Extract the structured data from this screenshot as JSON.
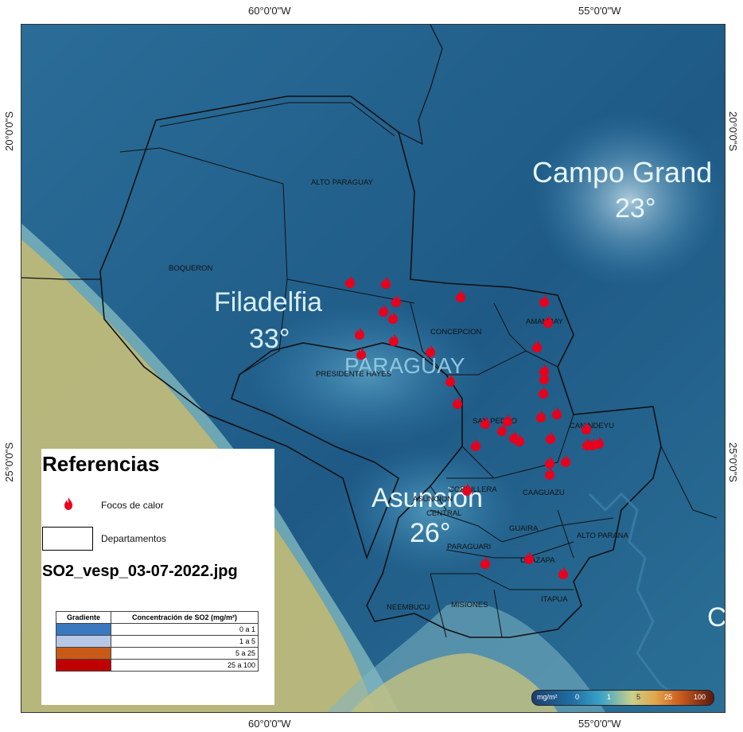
{
  "graticule": {
    "top": [
      "60°0'0\"W",
      "55°0'0\"W"
    ],
    "bottom": [
      "60°0'0\"W",
      "55°0'0\"W"
    ],
    "left": [
      "20°0'0\"S",
      "25°0'0\"S"
    ],
    "right": [
      "20°0'0\"S",
      "25°0'0\"S"
    ]
  },
  "weather_labels": {
    "campo_grande": "Campo Grand",
    "campo_grande_temp": "23°",
    "filadelfia": "Filadelfia",
    "filadelfia_temp": "33°",
    "asuncion": "Asunción",
    "asuncion_temp": "26°",
    "paraguay": "PARAGUAY",
    "edge_letter": "C"
  },
  "departments": {
    "alto_paraguay": "ALTO PARAGUAY",
    "boqueron": "BOQUERON",
    "presidente_hayes": "PRESIDENTE HAYES",
    "concepcion": "CONCEPCION",
    "amambay": "AMAMBAY",
    "san_pedro": "SAN PEDRO",
    "canindeyu": "CANINDEYU",
    "cordillera": "CORDILLERA",
    "asuncion": "ASUNCION",
    "central": "CENTRAL",
    "caaguazu": "CAAGUAZU",
    "guaira": "GUAIRA",
    "alto_parana": "ALTO PARANA",
    "paraguari": "PARAGUARI",
    "caazapa": "CAAZAPA",
    "neembucu": "NEEMBUCU",
    "misiones": "MISIONES",
    "itapua": "ITAPUA"
  },
  "legend": {
    "title": "Referencias",
    "fire_label": "Focos de calor",
    "dept_label": "Departamentos",
    "file_name": "SO2_vesp_03-07-2022.jpg",
    "table_header_gradient": "Gradiente",
    "table_header_conc": "Concentración de SO2 (mg/m²)",
    "rows": [
      {
        "color": "#3a78c0",
        "label": "0 a 1"
      },
      {
        "color": "#b7c7e6",
        "label": "1 a 5"
      },
      {
        "color": "#c85a18",
        "label": "5 a 25"
      },
      {
        "color": "#c00000",
        "label": "25 a 100"
      }
    ]
  },
  "scale_bar": {
    "unit": "mg/m²",
    "ticks": [
      "0",
      "1",
      "5",
      "25",
      "100"
    ]
  },
  "colors": {
    "ocean_blue": "#1f5a86",
    "fire_red": "#e8001c",
    "sand": "#c8c07a"
  }
}
